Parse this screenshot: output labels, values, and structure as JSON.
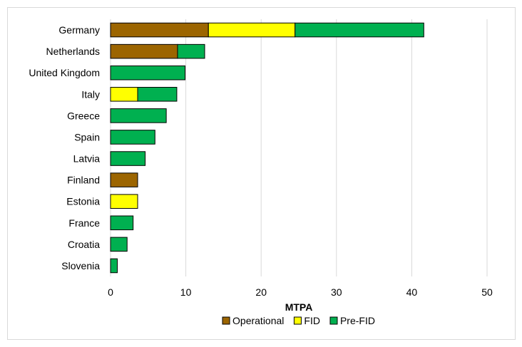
{
  "chart_data": {
    "type": "bar",
    "orientation": "horizontal",
    "stacked": true,
    "categories": [
      "Germany",
      "Netherlands",
      "United Kingdom",
      "Italy",
      "Greece",
      "Spain",
      "Latvia",
      "Finland",
      "Estonia",
      "France",
      "Croatia",
      "Slovenia"
    ],
    "series": [
      {
        "name": "Operational",
        "color": "#9c6500",
        "values": [
          13.0,
          8.9,
          0,
          0,
          0,
          0,
          0,
          3.6,
          0,
          0,
          0,
          0
        ]
      },
      {
        "name": "FID",
        "color": "#ffff00",
        "values": [
          11.5,
          0,
          0,
          3.6,
          0,
          0,
          0,
          0,
          3.6,
          0,
          0,
          0
        ]
      },
      {
        "name": "Pre-FID",
        "color": "#00b050",
        "values": [
          17.1,
          3.6,
          9.9,
          5.2,
          7.4,
          5.9,
          4.6,
          0,
          0,
          3.0,
          2.2,
          0.9
        ]
      }
    ],
    "xlabel": "MTPA",
    "ylabel": "",
    "xlim": [
      0,
      50
    ],
    "xticks": [
      "0",
      "10",
      "20",
      "30",
      "40",
      "50"
    ],
    "grid": "vertical",
    "legend_position": "bottom"
  }
}
